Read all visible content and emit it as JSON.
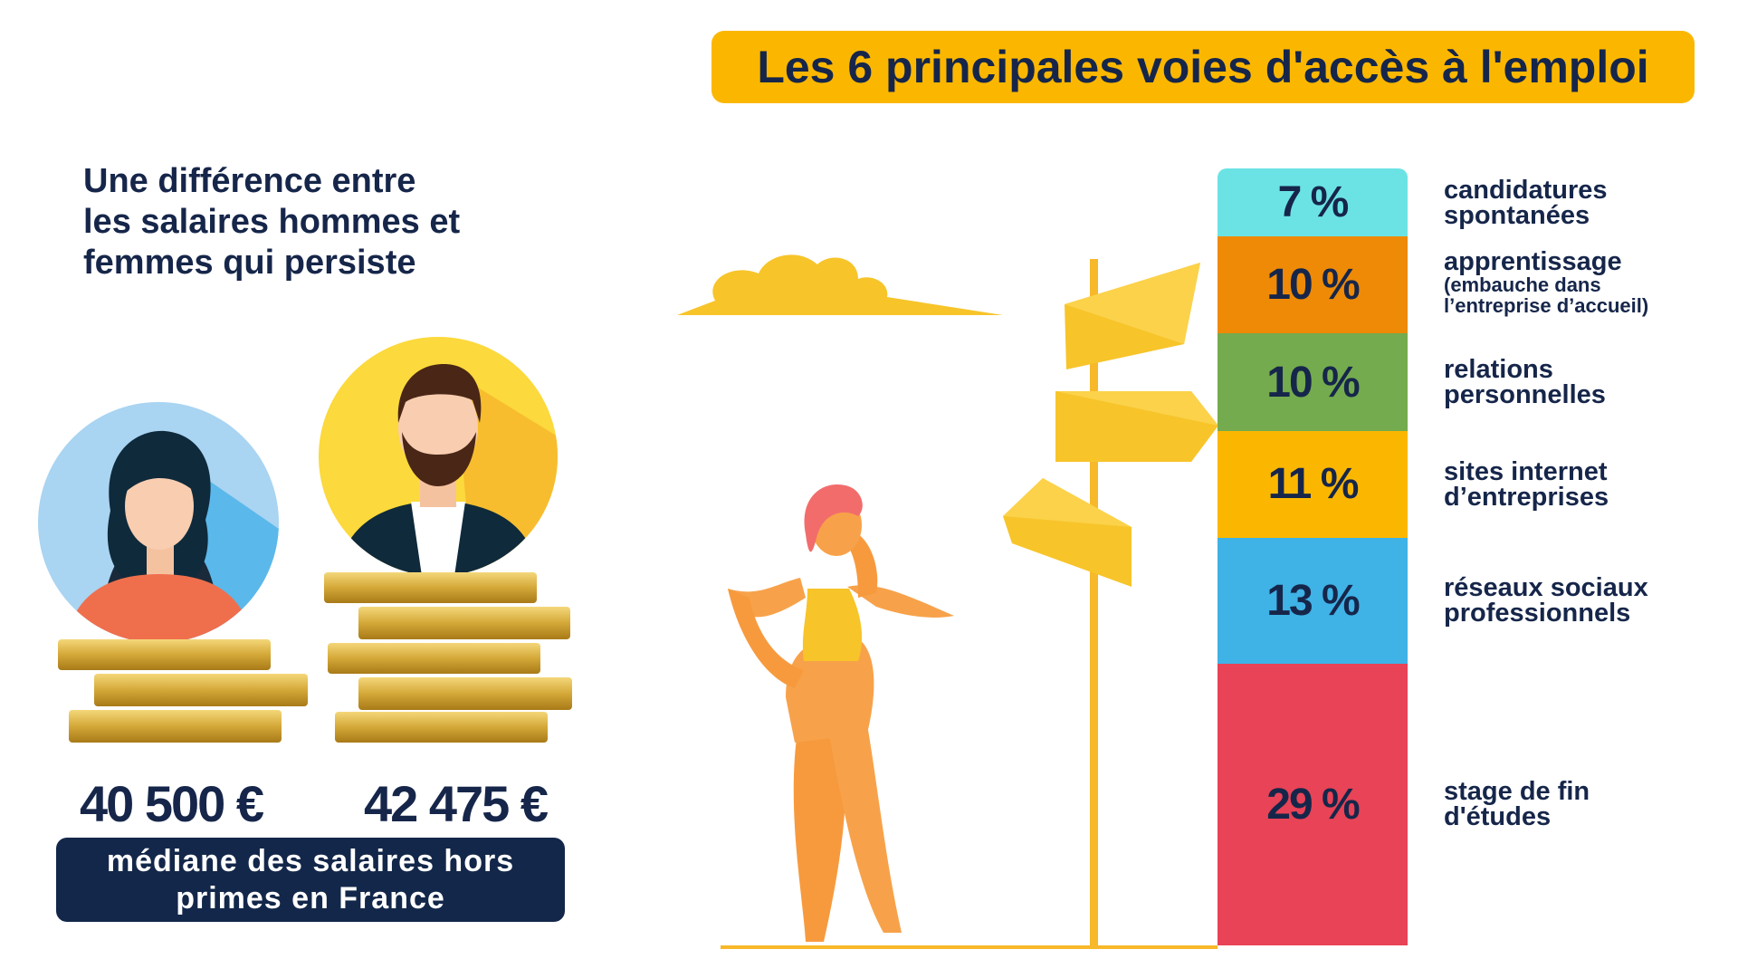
{
  "title": "Les 6 principales voies d'accès à l'emploi",
  "headline": [
    "Une différence entre",
    "les salaires hommes et",
    "femmes qui persiste"
  ],
  "salaries": {
    "women": "40 500 €",
    "men": "42 475 €",
    "caption": [
      "médiane des salaires hors",
      "primes en France"
    ]
  },
  "chart_data": {
    "type": "bar",
    "stacked": true,
    "orientation": "vertical",
    "categories": [
      "candidatures spontanées",
      "apprentissage (embauche dans l’entreprise d’accueil)",
      "relations personnelles",
      "sites internet d’entreprises",
      "réseaux sociaux professionnels",
      "stage de fin d'études"
    ],
    "values": [
      7,
      10,
      10,
      11,
      13,
      29
    ],
    "unit": "%",
    "segments": [
      {
        "value": 7,
        "value_label": "7 %",
        "label": [
          "candidatures",
          "spontanées"
        ],
        "sublabel": [],
        "color": "#6be3e5"
      },
      {
        "value": 10,
        "value_label": "10 %",
        "label": [
          "apprentissage"
        ],
        "sublabel": [
          "(embauche dans",
          "l’entreprise d’accueil)"
        ],
        "color": "#ee8a06"
      },
      {
        "value": 10,
        "value_label": "10 %",
        "label": [
          "relations",
          "personnelles"
        ],
        "sublabel": [],
        "color": "#74ab4e"
      },
      {
        "value": 11,
        "value_label": "11 %",
        "label": [
          "sites internet",
          "d’entreprises"
        ],
        "sublabel": [],
        "color": "#fbb700"
      },
      {
        "value": 13,
        "value_label": "13 %",
        "label": [
          "réseaux sociaux",
          "professionnels"
        ],
        "sublabel": [],
        "color": "#3fb2e6"
      },
      {
        "value": 29,
        "value_label": "29 %",
        "label": [
          "stage de fin",
          "d'études"
        ],
        "sublabel": [],
        "color": "#e84356"
      }
    ],
    "title": "Les 6 principales voies d'accès à l'emploi",
    "xlabel": "",
    "ylabel": "",
    "legend": "labels at right of bar",
    "grid": false
  },
  "icons": [
    "woman-avatar-icon",
    "man-avatar-icon",
    "coin-stack-icon",
    "cloud-icon",
    "signpost-icon",
    "woman-thinking-figure-icon"
  ],
  "colors": {
    "navy": "#16264a",
    "accent_yellow": "#fbb700",
    "gold": "#c99a2e",
    "woman_circle": "#a9d4f2",
    "man_circle": "#fcd93c"
  }
}
